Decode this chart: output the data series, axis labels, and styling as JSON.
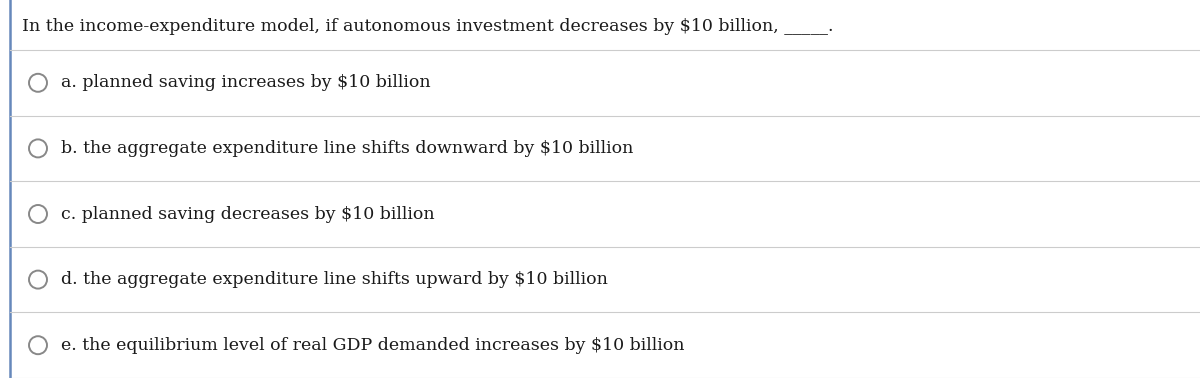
{
  "background_color": "#ffffff",
  "separator_color": "#cccccc",
  "text_color": "#1a1a1a",
  "title": "In the income-expenditure model, if autonomous investment decreases by $10 billion, _____.",
  "title_fontsize": 12.5,
  "options": [
    "a. planned saving increases by $10 billion",
    "b. the aggregate expenditure line shifts downward by $10 billion",
    "c. planned saving decreases by $10 billion",
    "d. the aggregate expenditure line shifts upward by $10 billion",
    "e. the equilibrium level of real GDP demanded increases by $10 billion"
  ],
  "option_fontsize": 12.5,
  "circle_edge_color": "#888888",
  "left_border_color": "#6688bb",
  "figsize": [
    12.0,
    3.78
  ],
  "dpi": 100
}
